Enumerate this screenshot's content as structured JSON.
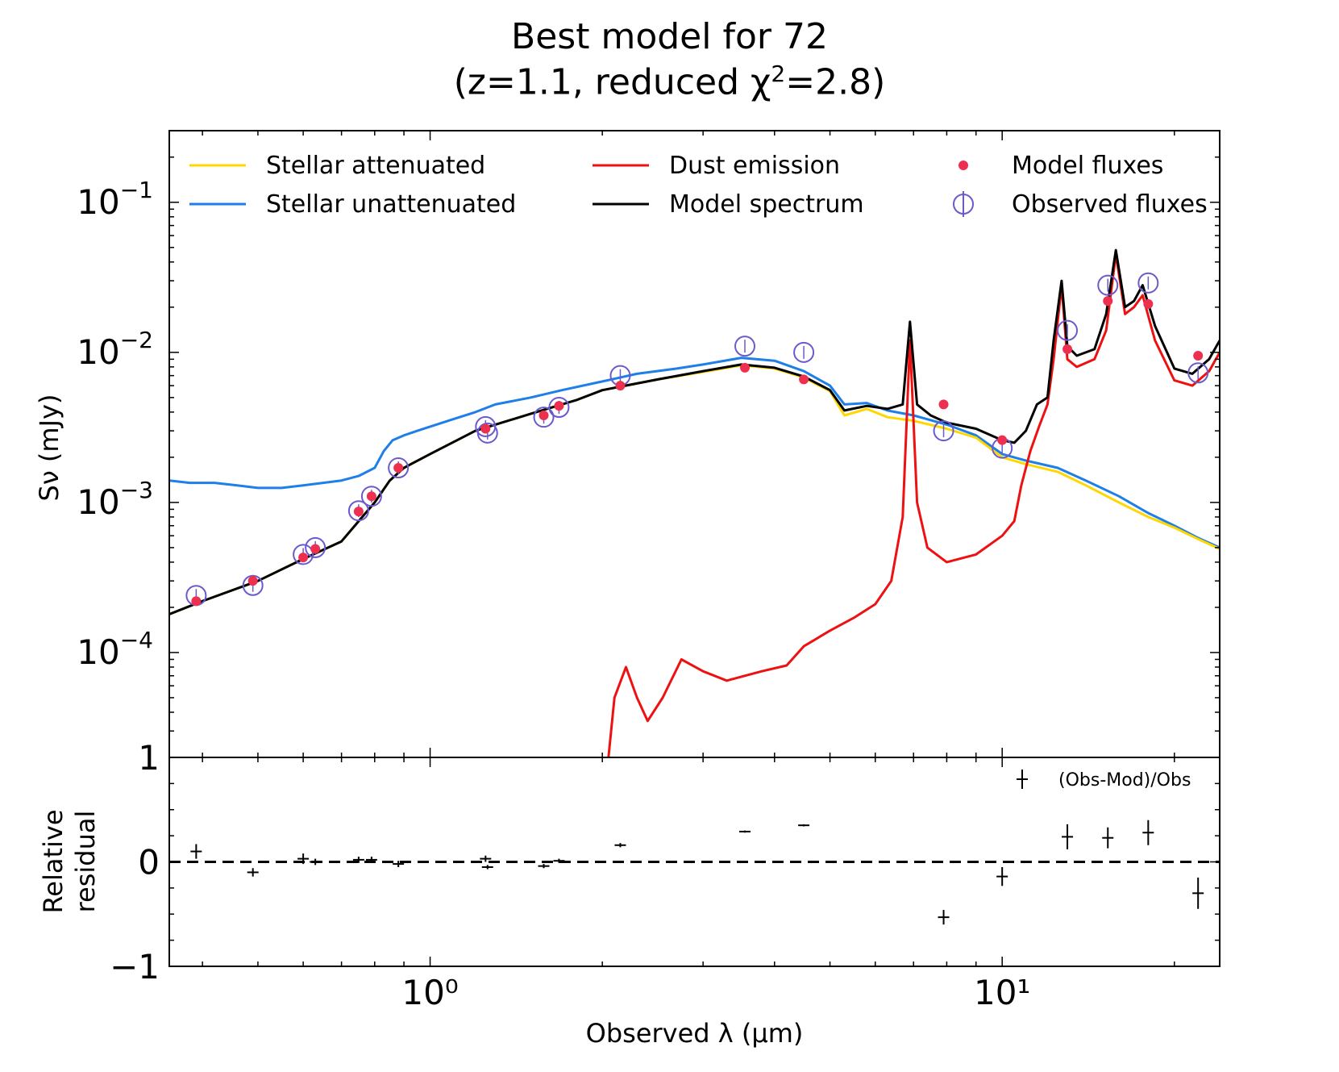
{
  "chart_data": [
    {
      "type": "line",
      "panel": "sed",
      "title": [
        "Best model for 72",
        "(z=1.1, reduced χ²=2.8)"
      ],
      "xlabel": "Observed λ (μm)",
      "ylabel": "Sν (mJy)",
      "xscale": "log",
      "yscale": "log",
      "xlim": [
        0.35,
        24
      ],
      "ylim": [
        2e-05,
        0.3
      ],
      "x_ticks": [
        1,
        10
      ],
      "x_tick_labels": [
        "10⁰",
        "10¹"
      ],
      "y_ticks": [
        0.0001,
        0.001,
        0.01,
        0.1
      ],
      "y_tick_labels": [
        {
          "base": "10",
          "exp": "−4"
        },
        {
          "base": "10",
          "exp": "−3"
        },
        {
          "base": "10",
          "exp": "−2"
        },
        {
          "base": "10",
          "exp": "−1"
        }
      ],
      "legend": {
        "placement": "top",
        "entries": [
          {
            "label": "Stellar attenuated",
            "color": "#FFD700",
            "kind": "line"
          },
          {
            "label": "Dust emission",
            "color": "#EE1111",
            "kind": "line"
          },
          {
            "label": "Model fluxes",
            "color": "#EE3050",
            "kind": "dot"
          },
          {
            "label": "Stellar unattenuated",
            "color": "#1E7FE8",
            "kind": "line"
          },
          {
            "label": "Model spectrum",
            "color": "#000000",
            "kind": "line"
          },
          {
            "label": "Observed fluxes",
            "color": "#6A5ACD",
            "kind": "circle"
          }
        ]
      },
      "series": [
        {
          "name": "Stellar unattenuated",
          "color": "#1E7FE8",
          "points": [
            [
              0.35,
              0.0014
            ],
            [
              0.38,
              0.00135
            ],
            [
              0.42,
              0.00135
            ],
            [
              0.46,
              0.0013
            ],
            [
              0.5,
              0.00125
            ],
            [
              0.55,
              0.00125
            ],
            [
              0.6,
              0.0013
            ],
            [
              0.65,
              0.00135
            ],
            [
              0.7,
              0.0014
            ],
            [
              0.75,
              0.0015
            ],
            [
              0.8,
              0.0017
            ],
            [
              0.83,
              0.0022
            ],
            [
              0.86,
              0.0026
            ],
            [
              0.9,
              0.0028
            ],
            [
              0.95,
              0.003
            ],
            [
              1.0,
              0.0032
            ],
            [
              1.1,
              0.0036
            ],
            [
              1.2,
              0.004
            ],
            [
              1.3,
              0.0045
            ],
            [
              1.5,
              0.005
            ],
            [
              1.7,
              0.0056
            ],
            [
              2.0,
              0.0064
            ],
            [
              2.3,
              0.0072
            ],
            [
              2.7,
              0.0078
            ],
            [
              3.0,
              0.0083
            ],
            [
              3.5,
              0.0092
            ],
            [
              4.0,
              0.0088
            ],
            [
              4.5,
              0.0075
            ],
            [
              5.0,
              0.006
            ],
            [
              5.3,
              0.0045
            ],
            [
              5.8,
              0.0046
            ],
            [
              6.3,
              0.0041
            ],
            [
              7.0,
              0.0038
            ],
            [
              8.0,
              0.0033
            ],
            [
              9.0,
              0.0028
            ],
            [
              10.0,
              0.0021
            ],
            [
              11.0,
              0.0019
            ],
            [
              12.5,
              0.0017
            ],
            [
              14.0,
              0.0014
            ],
            [
              16.0,
              0.0011
            ],
            [
              18.0,
              0.00085
            ],
            [
              20.0,
              0.0007
            ],
            [
              22.0,
              0.00058
            ],
            [
              24.0,
              0.0005
            ]
          ]
        },
        {
          "name": "Stellar attenuated",
          "color": "#FFD700",
          "points": [
            [
              0.35,
              0.00018
            ],
            [
              0.4,
              0.00022
            ],
            [
              0.5,
              0.0003
            ],
            [
              0.6,
              0.00042
            ],
            [
              0.7,
              0.00055
            ],
            [
              0.75,
              0.00075
            ],
            [
              0.8,
              0.001
            ],
            [
              0.85,
              0.0014
            ],
            [
              0.9,
              0.0017
            ],
            [
              1.0,
              0.0021
            ],
            [
              1.2,
              0.003
            ],
            [
              1.5,
              0.0039
            ],
            [
              1.8,
              0.0048
            ],
            [
              2.0,
              0.0056
            ],
            [
              2.5,
              0.0066
            ],
            [
              3.0,
              0.0074
            ],
            [
              3.5,
              0.0082
            ],
            [
              4.0,
              0.0078
            ],
            [
              4.5,
              0.0068
            ],
            [
              5.0,
              0.0055
            ],
            [
              5.3,
              0.0038
            ],
            [
              5.8,
              0.0042
            ],
            [
              6.3,
              0.0037
            ],
            [
              7.0,
              0.0035
            ],
            [
              8.0,
              0.0031
            ],
            [
              9.0,
              0.0027
            ],
            [
              10.0,
              0.002
            ],
            [
              11.0,
              0.0018
            ],
            [
              12.5,
              0.0016
            ],
            [
              14.0,
              0.0013
            ],
            [
              16.0,
              0.001
            ],
            [
              18.0,
              0.0008
            ],
            [
              20.0,
              0.00068
            ],
            [
              22.0,
              0.00057
            ],
            [
              24.0,
              0.00049
            ]
          ]
        },
        {
          "name": "Dust emission",
          "color": "#EE1111",
          "points": [
            [
              2.05,
              2e-05
            ],
            [
              2.1,
              5e-05
            ],
            [
              2.2,
              8e-05
            ],
            [
              2.3,
              5e-05
            ],
            [
              2.4,
              3.5e-05
            ],
            [
              2.55,
              5e-05
            ],
            [
              2.75,
              9e-05
            ],
            [
              3.0,
              7.5e-05
            ],
            [
              3.3,
              6.5e-05
            ],
            [
              3.8,
              7.5e-05
            ],
            [
              4.2,
              8.2e-05
            ],
            [
              4.5,
              0.00011
            ],
            [
              5.0,
              0.00014
            ],
            [
              5.5,
              0.00017
            ],
            [
              6.0,
              0.00021
            ],
            [
              6.4,
              0.0003
            ],
            [
              6.7,
              0.0008
            ],
            [
              6.9,
              0.012
            ],
            [
              7.1,
              0.001
            ],
            [
              7.4,
              0.0005
            ],
            [
              8.0,
              0.0004
            ],
            [
              9.0,
              0.00045
            ],
            [
              10.0,
              0.0006
            ],
            [
              10.5,
              0.00075
            ],
            [
              10.8,
              0.0013
            ],
            [
              11.2,
              0.0022
            ],
            [
              11.6,
              0.0032
            ],
            [
              12.0,
              0.0045
            ],
            [
              12.3,
              0.009
            ],
            [
              12.7,
              0.028
            ],
            [
              13.0,
              0.009
            ],
            [
              13.5,
              0.008
            ],
            [
              14.5,
              0.009
            ],
            [
              15.2,
              0.014
            ],
            [
              15.8,
              0.045
            ],
            [
              16.4,
              0.018
            ],
            [
              17.0,
              0.02
            ],
            [
              17.6,
              0.024
            ],
            [
              18.5,
              0.012
            ],
            [
              20.0,
              0.0065
            ],
            [
              21.5,
              0.006
            ],
            [
              23.0,
              0.0075
            ],
            [
              24.0,
              0.01
            ]
          ]
        },
        {
          "name": "Model spectrum",
          "color": "#000000",
          "points": [
            [
              0.35,
              0.00018
            ],
            [
              0.4,
              0.00022
            ],
            [
              0.5,
              0.0003
            ],
            [
              0.6,
              0.00042
            ],
            [
              0.7,
              0.00055
            ],
            [
              0.75,
              0.00075
            ],
            [
              0.8,
              0.001
            ],
            [
              0.85,
              0.0014
            ],
            [
              0.9,
              0.0017
            ],
            [
              1.0,
              0.0021
            ],
            [
              1.2,
              0.003
            ],
            [
              1.5,
              0.0039
            ],
            [
              1.8,
              0.0048
            ],
            [
              2.0,
              0.0056
            ],
            [
              2.5,
              0.0066
            ],
            [
              3.0,
              0.0075
            ],
            [
              3.5,
              0.0083
            ],
            [
              4.0,
              0.0079
            ],
            [
              4.5,
              0.0069
            ],
            [
              5.0,
              0.0056
            ],
            [
              5.3,
              0.0041
            ],
            [
              5.8,
              0.0044
            ],
            [
              6.3,
              0.0042
            ],
            [
              6.7,
              0.0045
            ],
            [
              6.9,
              0.016
            ],
            [
              7.1,
              0.0045
            ],
            [
              7.5,
              0.0038
            ],
            [
              8.0,
              0.0034
            ],
            [
              9.0,
              0.0031
            ],
            [
              10.0,
              0.0026
            ],
            [
              10.5,
              0.0025
            ],
            [
              11.0,
              0.003
            ],
            [
              11.5,
              0.0045
            ],
            [
              12.0,
              0.005
            ],
            [
              12.3,
              0.012
            ],
            [
              12.7,
              0.03
            ],
            [
              13.0,
              0.011
            ],
            [
              13.5,
              0.0095
            ],
            [
              14.5,
              0.0105
            ],
            [
              15.2,
              0.018
            ],
            [
              15.8,
              0.048
            ],
            [
              16.4,
              0.02
            ],
            [
              17.0,
              0.022
            ],
            [
              17.6,
              0.028
            ],
            [
              18.5,
              0.015
            ],
            [
              20.0,
              0.0078
            ],
            [
              21.5,
              0.0072
            ],
            [
              23.0,
              0.009
            ],
            [
              24.0,
              0.012
            ]
          ]
        }
      ],
      "model_fluxes": [
        [
          0.39,
          0.00022
        ],
        [
          0.49,
          0.0003
        ],
        [
          0.6,
          0.00043
        ],
        [
          0.63,
          0.00049
        ],
        [
          0.75,
          0.00087
        ],
        [
          0.79,
          0.0011
        ],
        [
          0.88,
          0.0017
        ],
        [
          1.25,
          0.0031
        ],
        [
          1.58,
          0.0038
        ],
        [
          1.68,
          0.0044
        ],
        [
          2.15,
          0.006
        ],
        [
          3.55,
          0.0079
        ],
        [
          4.5,
          0.0066
        ],
        [
          7.9,
          0.0045
        ],
        [
          10.0,
          0.0026
        ],
        [
          13.0,
          0.0105
        ],
        [
          15.3,
          0.022
        ],
        [
          18.0,
          0.021
        ],
        [
          22.0,
          0.0095
        ]
      ],
      "observed_fluxes": [
        [
          0.39,
          0.00024
        ],
        [
          0.49,
          0.00028
        ],
        [
          0.6,
          0.00045
        ],
        [
          0.63,
          0.0005
        ],
        [
          0.75,
          0.00088
        ],
        [
          0.79,
          0.0011
        ],
        [
          0.88,
          0.0017
        ],
        [
          1.25,
          0.0032
        ],
        [
          1.26,
          0.0029
        ],
        [
          1.58,
          0.0037
        ],
        [
          1.68,
          0.0043
        ],
        [
          2.15,
          0.007
        ],
        [
          3.55,
          0.011
        ],
        [
          4.5,
          0.01
        ],
        [
          7.9,
          0.003
        ],
        [
          10.0,
          0.0023
        ],
        [
          13.0,
          0.014
        ],
        [
          15.3,
          0.028
        ],
        [
          18.0,
          0.029
        ],
        [
          22.0,
          0.0073
        ]
      ]
    },
    {
      "type": "scatter",
      "panel": "residual",
      "ylabel": [
        "Relative",
        "residual"
      ],
      "xlabel": "Observed λ (μm)",
      "xscale": "log",
      "xlim": [
        0.35,
        24
      ],
      "ylim": [
        -1,
        1
      ],
      "y_ticks": [
        -1,
        0,
        1
      ],
      "y_tick_labels": [
        "−1",
        "0",
        "1"
      ],
      "zero_line": "dashed",
      "legend": {
        "placement": "top-right",
        "label": "(Obs-Mod)/Obs"
      },
      "points": [
        [
          0.39,
          0.1,
          0.07
        ],
        [
          0.49,
          -0.1,
          0.04
        ],
        [
          0.6,
          0.03,
          0.05
        ],
        [
          0.63,
          0.0,
          0.03
        ],
        [
          0.75,
          0.02,
          0.03
        ],
        [
          0.79,
          0.02,
          0.03
        ],
        [
          0.88,
          -0.02,
          0.03
        ],
        [
          1.25,
          0.03,
          0.03
        ],
        [
          1.26,
          -0.05,
          0.02
        ],
        [
          1.58,
          -0.04,
          0.02
        ],
        [
          1.68,
          0.01,
          0.02
        ],
        [
          2.15,
          0.16,
          0.02
        ],
        [
          3.55,
          0.29,
          0.01
        ],
        [
          4.5,
          0.35,
          0.01
        ],
        [
          7.9,
          -0.53,
          0.07
        ],
        [
          10.0,
          -0.14,
          0.09
        ],
        [
          13.0,
          0.24,
          0.12
        ],
        [
          15.3,
          0.23,
          0.1
        ],
        [
          18.0,
          0.28,
          0.12
        ],
        [
          22.0,
          -0.3,
          0.15
        ]
      ]
    }
  ]
}
